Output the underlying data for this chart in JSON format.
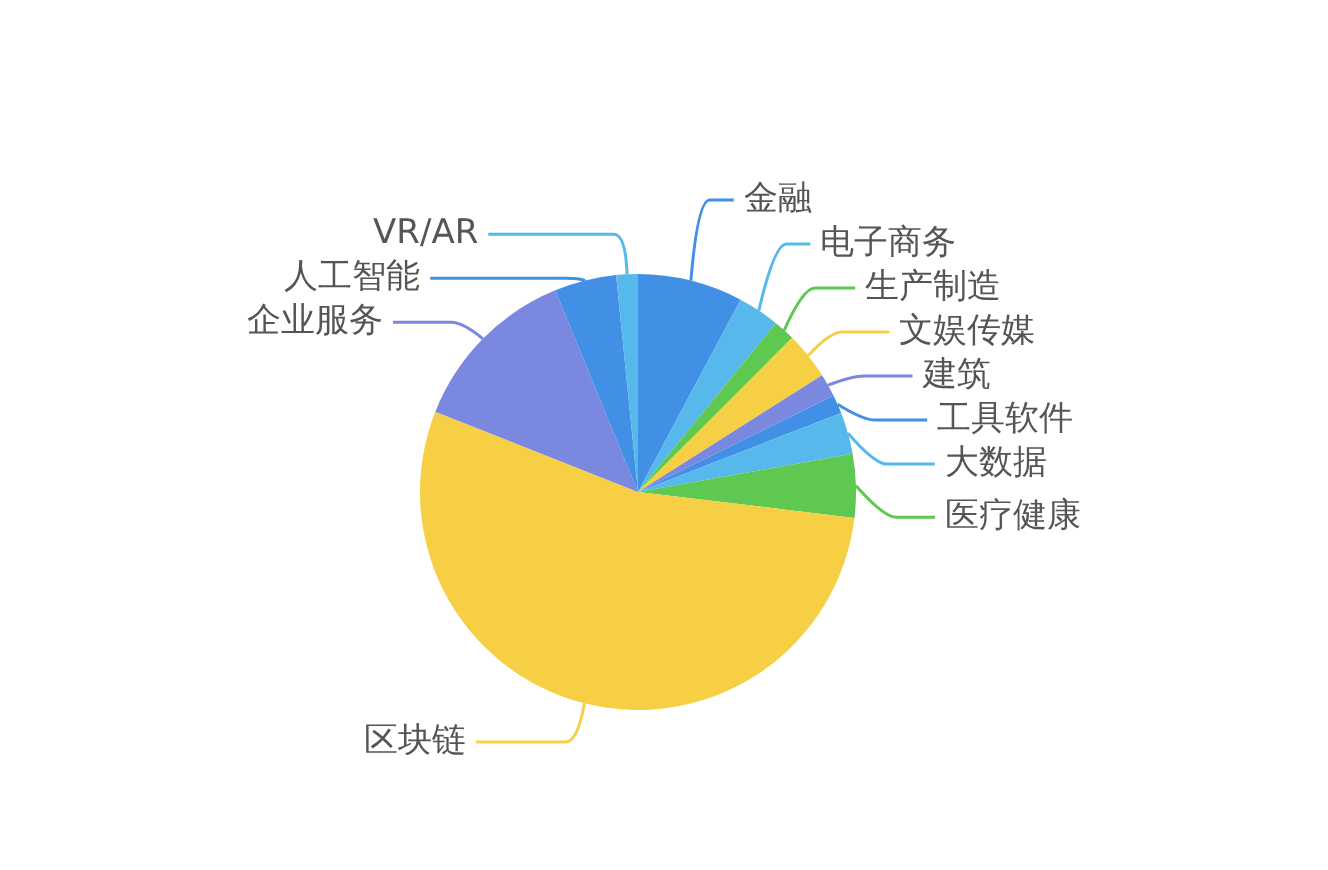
{
  "chart_data": {
    "type": "pie",
    "categories": [
      "金融",
      "电子商务",
      "生产制造",
      "文娱传媒",
      "建筑",
      "工具软件",
      "大数据",
      "医疗健康",
      "区块链",
      "企业服务",
      "人工智能",
      "VR/AR"
    ],
    "values": [
      7.8,
      3.1,
      1.6,
      3.5,
      1.7,
      1.4,
      3.1,
      4.7,
      54.1,
      12.8,
      4.6,
      1.6
    ],
    "colors": [
      "#4190e5",
      "#56b8eb",
      "#5ec850",
      "#f6cf45",
      "#7b88e0",
      "#4190e5",
      "#56b8eb",
      "#5ec850",
      "#f6cf45",
      "#7b88e0",
      "#4190e5",
      "#56b8eb"
    ]
  }
}
